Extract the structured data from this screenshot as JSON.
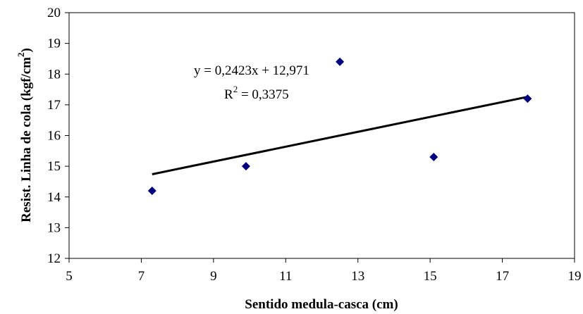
{
  "chart_data": {
    "type": "scatter",
    "xlabel": "Sentido medula-casca (cm)",
    "ylabel": "Resist. Linha de cola (kgf/cm",
    "ylabel_sup": "2",
    "ylabel_close": ")",
    "xlim": [
      5,
      19
    ],
    "ylim": [
      12,
      20
    ],
    "xticks": [
      5,
      7,
      9,
      11,
      13,
      15,
      17,
      19
    ],
    "yticks": [
      12,
      13,
      14,
      15,
      16,
      17,
      18,
      19,
      20
    ],
    "grid": false,
    "series": [
      {
        "x": [
          7.3,
          9.9,
          12.5,
          15.1,
          17.7
        ],
        "y": [
          14.2,
          15.0,
          18.4,
          15.3,
          17.2
        ],
        "marker": "diamond",
        "color": "#00007f"
      }
    ],
    "trendline": {
      "slope": 0.2423,
      "intercept": 12.971,
      "x_range": [
        7.3,
        17.7
      ],
      "color": "#000000"
    },
    "annotations": {
      "equation": "y = 0,2423x + 12,971",
      "r2_prefix": "R",
      "r2_sup": "2",
      "r2_value": " = 0,3375"
    }
  }
}
